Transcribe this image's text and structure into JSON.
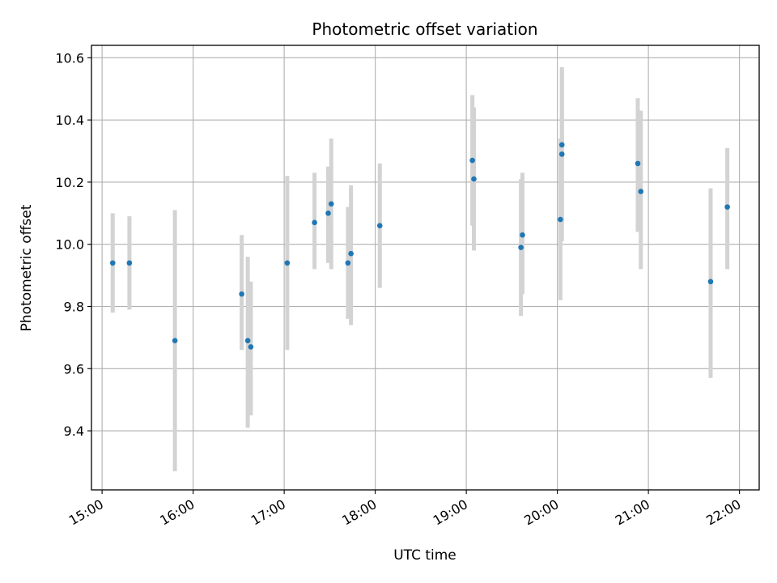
{
  "chart_data": {
    "type": "scatter",
    "title": "Photometric offset variation",
    "xlabel": "UTC time",
    "ylabel": "Photometric offset",
    "x_unit": "UTC time (HH:MM)",
    "xlim": [
      "14:53",
      "22:13"
    ],
    "ylim": [
      9.21,
      10.64
    ],
    "x_ticks": [
      "15:00",
      "16:00",
      "17:00",
      "18:00",
      "19:00",
      "20:00",
      "21:00",
      "22:00"
    ],
    "y_ticks": [
      9.4,
      9.6,
      9.8,
      10.0,
      10.2,
      10.4,
      10.6
    ],
    "y_tick_labels": [
      "9.4",
      "9.6",
      "9.8",
      "10.0",
      "10.2",
      "10.4",
      "10.6"
    ],
    "grid": true,
    "legend": "none",
    "point_color": "#1f77b4",
    "errorbar_color": "#d3d3d3",
    "points": [
      {
        "x": "15:07",
        "y": 9.94,
        "ylo": 9.78,
        "yhi": 10.1
      },
      {
        "x": "15:18",
        "y": 9.94,
        "ylo": 9.79,
        "yhi": 10.09
      },
      {
        "x": "15:48",
        "y": 9.69,
        "ylo": 9.27,
        "yhi": 10.11
      },
      {
        "x": "16:32",
        "y": 9.84,
        "ylo": 9.66,
        "yhi": 10.03
      },
      {
        "x": "16:36",
        "y": 9.69,
        "ylo": 9.41,
        "yhi": 9.96
      },
      {
        "x": "16:38",
        "y": 9.67,
        "ylo": 9.45,
        "yhi": 9.88
      },
      {
        "x": "17:02",
        "y": 9.94,
        "ylo": 9.66,
        "yhi": 10.22
      },
      {
        "x": "17:20",
        "y": 10.07,
        "ylo": 9.92,
        "yhi": 10.23
      },
      {
        "x": "17:29",
        "y": 10.1,
        "ylo": 9.94,
        "yhi": 10.25
      },
      {
        "x": "17:31",
        "y": 10.13,
        "ylo": 9.92,
        "yhi": 10.34
      },
      {
        "x": "17:42",
        "y": 9.94,
        "ylo": 9.76,
        "yhi": 10.12
      },
      {
        "x": "17:44",
        "y": 9.97,
        "ylo": 9.74,
        "yhi": 10.19
      },
      {
        "x": "18:03",
        "y": 10.06,
        "ylo": 9.86,
        "yhi": 10.26
      },
      {
        "x": "19:04",
        "y": 10.27,
        "ylo": 10.06,
        "yhi": 10.48
      },
      {
        "x": "19:05",
        "y": 10.21,
        "ylo": 9.98,
        "yhi": 10.44
      },
      {
        "x": "19:36",
        "y": 9.99,
        "ylo": 9.77,
        "yhi": 10.21
      },
      {
        "x": "19:37",
        "y": 10.03,
        "ylo": 9.84,
        "yhi": 10.23
      },
      {
        "x": "20:02",
        "y": 10.08,
        "ylo": 9.82,
        "yhi": 10.34
      },
      {
        "x": "20:03",
        "y": 10.29,
        "ylo": 10.01,
        "yhi": 10.57
      },
      {
        "x": "20:03",
        "y": 10.32,
        "ylo": 10.07,
        "yhi": 10.56
      },
      {
        "x": "20:53",
        "y": 10.26,
        "ylo": 10.04,
        "yhi": 10.47
      },
      {
        "x": "20:55",
        "y": 10.17,
        "ylo": 9.92,
        "yhi": 10.43
      },
      {
        "x": "21:41",
        "y": 9.88,
        "ylo": 9.57,
        "yhi": 10.18
      },
      {
        "x": "21:52",
        "y": 10.12,
        "ylo": 9.92,
        "yhi": 10.31
      }
    ]
  }
}
